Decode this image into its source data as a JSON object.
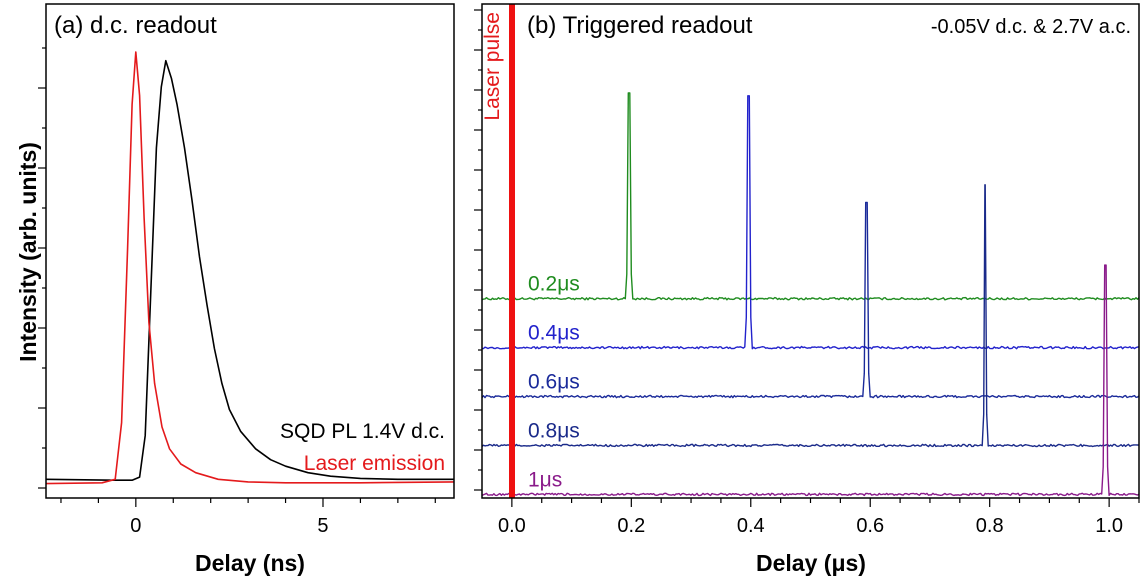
{
  "chart_data": [
    {
      "type": "line",
      "panel_label": "(a) d.c. readout",
      "xlabel": "Delay (ns)",
      "ylabel": "Intensity (arb. units)",
      "xlim": [
        -2.4,
        8.5
      ],
      "ylim": [
        0,
        1.0
      ],
      "x_ticks": [
        0,
        5
      ],
      "x_tick_labels": [
        "0",
        "5"
      ],
      "grid": false,
      "legend": "bottom-right",
      "series": [
        {
          "name": "SQD PL 1.4V d.c.",
          "color": "#000000",
          "points": [
            [
              -2.4,
              0.02
            ],
            [
              -0.6,
              0.018
            ],
            [
              -0.1,
              0.018
            ],
            [
              0.1,
              0.025
            ],
            [
              0.25,
              0.12
            ],
            [
              0.4,
              0.45
            ],
            [
              0.55,
              0.78
            ],
            [
              0.68,
              0.92
            ],
            [
              0.8,
              0.98
            ],
            [
              0.95,
              0.94
            ],
            [
              1.1,
              0.88
            ],
            [
              1.3,
              0.78
            ],
            [
              1.5,
              0.66
            ],
            [
              1.7,
              0.53
            ],
            [
              1.9,
              0.42
            ],
            [
              2.1,
              0.32
            ],
            [
              2.3,
              0.24
            ],
            [
              2.5,
              0.18
            ],
            [
              2.8,
              0.13
            ],
            [
              3.2,
              0.09
            ],
            [
              3.6,
              0.065
            ],
            [
              4.0,
              0.05
            ],
            [
              4.6,
              0.035
            ],
            [
              5.2,
              0.027
            ],
            [
              6.0,
              0.022
            ],
            [
              7.0,
              0.02
            ],
            [
              8.5,
              0.02
            ]
          ]
        },
        {
          "name": "Laser emission",
          "color": "#e41a1c",
          "points": [
            [
              -2.4,
              0.01
            ],
            [
              -0.9,
              0.012
            ],
            [
              -0.55,
              0.02
            ],
            [
              -0.38,
              0.15
            ],
            [
              -0.22,
              0.55
            ],
            [
              -0.1,
              0.88
            ],
            [
              0.0,
              1.0
            ],
            [
              0.1,
              0.9
            ],
            [
              0.22,
              0.62
            ],
            [
              0.35,
              0.38
            ],
            [
              0.5,
              0.24
            ],
            [
              0.7,
              0.14
            ],
            [
              0.9,
              0.09
            ],
            [
              1.2,
              0.055
            ],
            [
              1.6,
              0.035
            ],
            [
              2.2,
              0.02
            ],
            [
              3.0,
              0.014
            ],
            [
              4.0,
              0.012
            ],
            [
              6.0,
              0.012
            ],
            [
              8.5,
              0.014
            ]
          ]
        }
      ]
    },
    {
      "type": "line",
      "panel_label": "(b) Triggered readout",
      "annotation": "-0.05V d.c. & 2.7V a.c.",
      "marker_label": "Laser pulse",
      "xlabel": "Delay (μs)",
      "ylabel": "",
      "xlim": [
        -0.05,
        1.05
      ],
      "ylim": [
        0,
        5.5
      ],
      "x_ticks": [
        0.0,
        0.2,
        0.4,
        0.6,
        0.8,
        1.0
      ],
      "x_tick_labels": [
        "0.0",
        "0.2",
        "0.4",
        "0.6",
        "0.8",
        "1.0"
      ],
      "grid": false,
      "series": [
        {
          "name": "0.2μs",
          "color": "#1f8c1f",
          "baseline": 2.73,
          "peak_x": 0.197,
          "peak_height": 2.82
        },
        {
          "name": "0.4μs",
          "color": "#2222cc",
          "baseline": 2.06,
          "peak_x": 0.397,
          "peak_height": 3.45
        },
        {
          "name": "0.6μs",
          "color": "#1a2a9a",
          "baseline": 1.39,
          "peak_x": 0.593,
          "peak_height": 2.66
        },
        {
          "name": "0.8μs",
          "color": "#1a2a8a",
          "baseline": 0.72,
          "peak_x": 0.792,
          "peak_height": 3.57
        },
        {
          "name": "1μs",
          "color": "#8a1a8a",
          "baseline": 0.05,
          "peak_x": 0.993,
          "peak_height": 3.14
        }
      ]
    }
  ]
}
